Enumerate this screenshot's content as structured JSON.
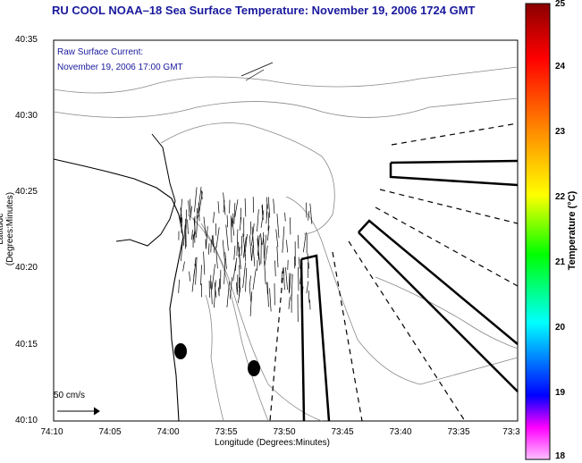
{
  "title": "RU COOL  NOAA–18  Sea Surface Temperature:  November 19, 2006 1724 GMT",
  "annotation": {
    "line1": "Raw Surface Current:",
    "line2": "November 19, 2006 17:00 GMT"
  },
  "axes": {
    "xlabel": "Longitude (Degrees:Minutes)",
    "ylabel": "Latitude (Degrees:Minutes)",
    "xticks": [
      "74:10",
      "74:05",
      "74:00",
      "73:55",
      "73:50",
      "73:45",
      "73:40",
      "73:35",
      "73:3"
    ],
    "yticks": [
      "40:35",
      "40:30",
      "40:25",
      "40:20",
      "40:15",
      "40:10"
    ]
  },
  "colorbar": {
    "label": "Temperature (°C)",
    "ticks": [
      "25",
      "24",
      "23",
      "22",
      "21",
      "20",
      "19",
      "18"
    ],
    "colors": [
      "#8b0000",
      "#ff0000",
      "#ff8c00",
      "#ffff00",
      "#00ff00",
      "#00ffff",
      "#0000ff",
      "#ff00ff",
      "#ff80ff"
    ]
  },
  "scale_label": "50 cm/s",
  "icons": [
    "current-vector-icon",
    "scale-arrow-icon"
  ]
}
